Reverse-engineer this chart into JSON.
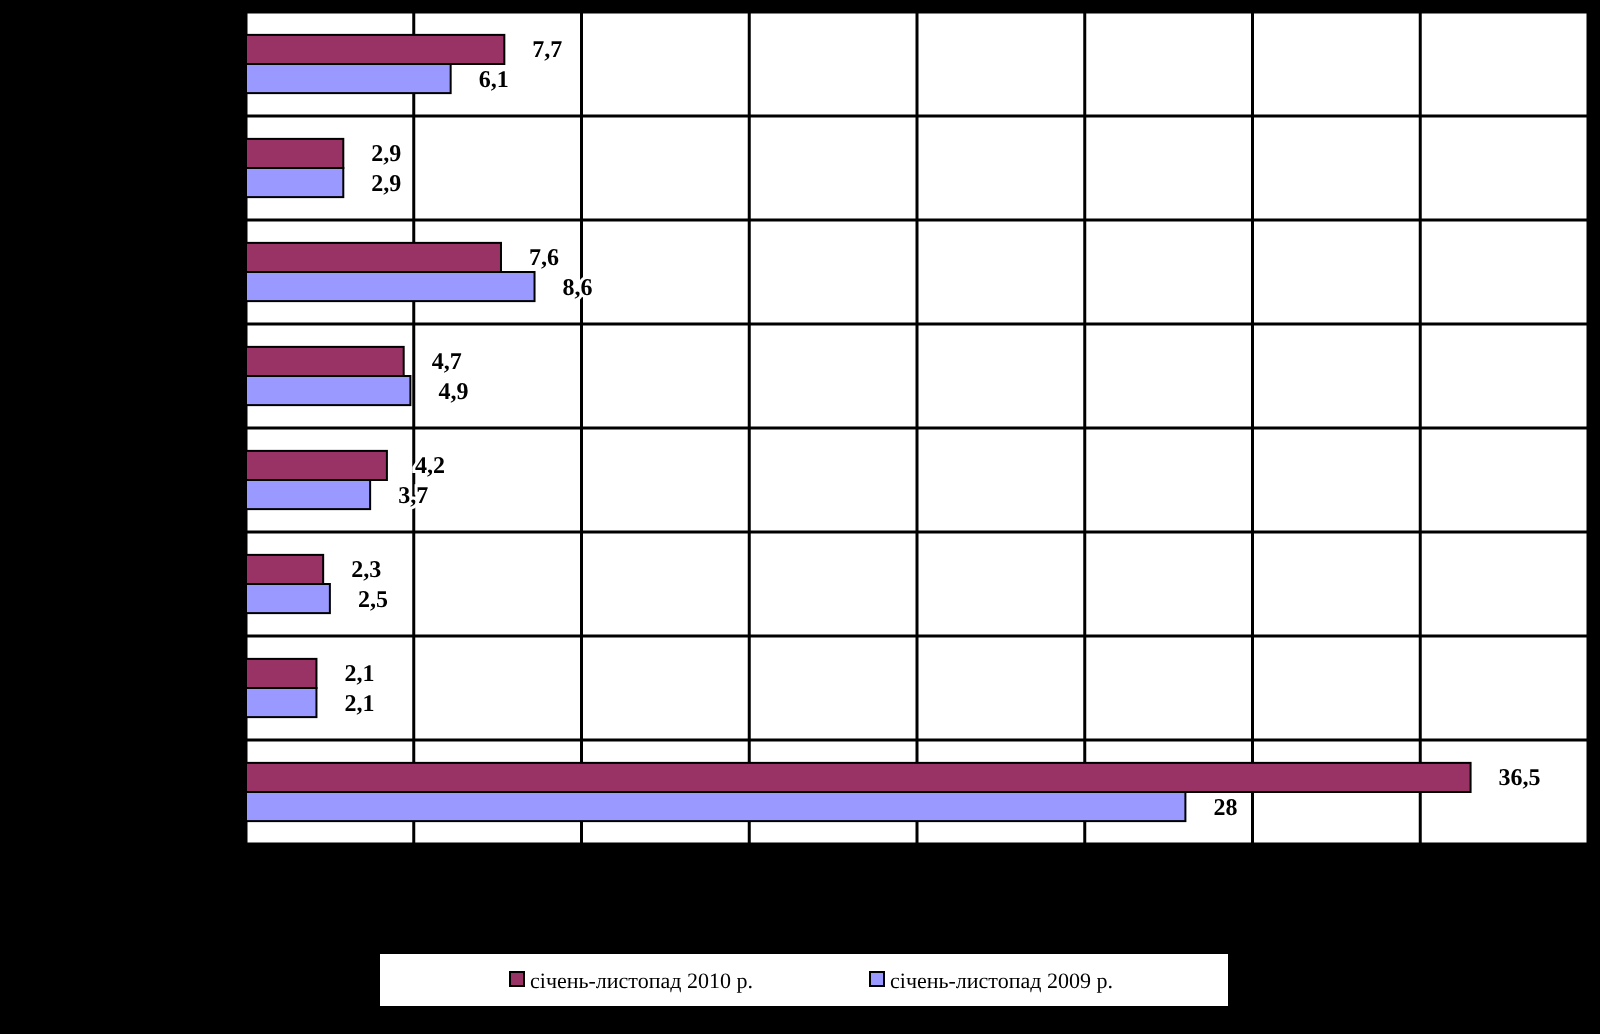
{
  "chart_data": {
    "type": "bar",
    "orientation": "horizontal",
    "categories": [
      null,
      null,
      null,
      null,
      null,
      null,
      null,
      null
    ],
    "series": [
      {
        "name": "січень-листопад 2010 р.",
        "color": "#993366",
        "values": [
          7.7,
          2.9,
          7.6,
          4.7,
          4.2,
          2.3,
          2.1,
          36.5
        ],
        "value_labels": [
          "7,7",
          "2,9",
          "7,6",
          "4,7",
          "4,2",
          "2,3",
          "2,1",
          "36,5"
        ]
      },
      {
        "name": "січень-листопад 2009 р.",
        "color": "#9999ff",
        "values": [
          6.1,
          2.9,
          8.6,
          4.9,
          3.7,
          2.5,
          2.1,
          28
        ],
        "value_labels": [
          "6,1",
          "2,9",
          "8,6",
          "4,9",
          "3,7",
          "2,5",
          "2,1",
          "28"
        ]
      }
    ],
    "xlim": [
      0,
      40
    ],
    "xticks": [
      {
        "value": 0,
        "label": null
      },
      {
        "value": 5,
        "label": null
      },
      {
        "value": 10,
        "label": null
      },
      {
        "value": 15,
        "label": null
      },
      {
        "value": 20,
        "label": null
      },
      {
        "value": 25,
        "label": null
      },
      {
        "value": 30,
        "label": null
      },
      {
        "value": 35,
        "label": null
      },
      {
        "value": 40,
        "label": null
      }
    ],
    "grid": true,
    "legend": "bottom"
  }
}
